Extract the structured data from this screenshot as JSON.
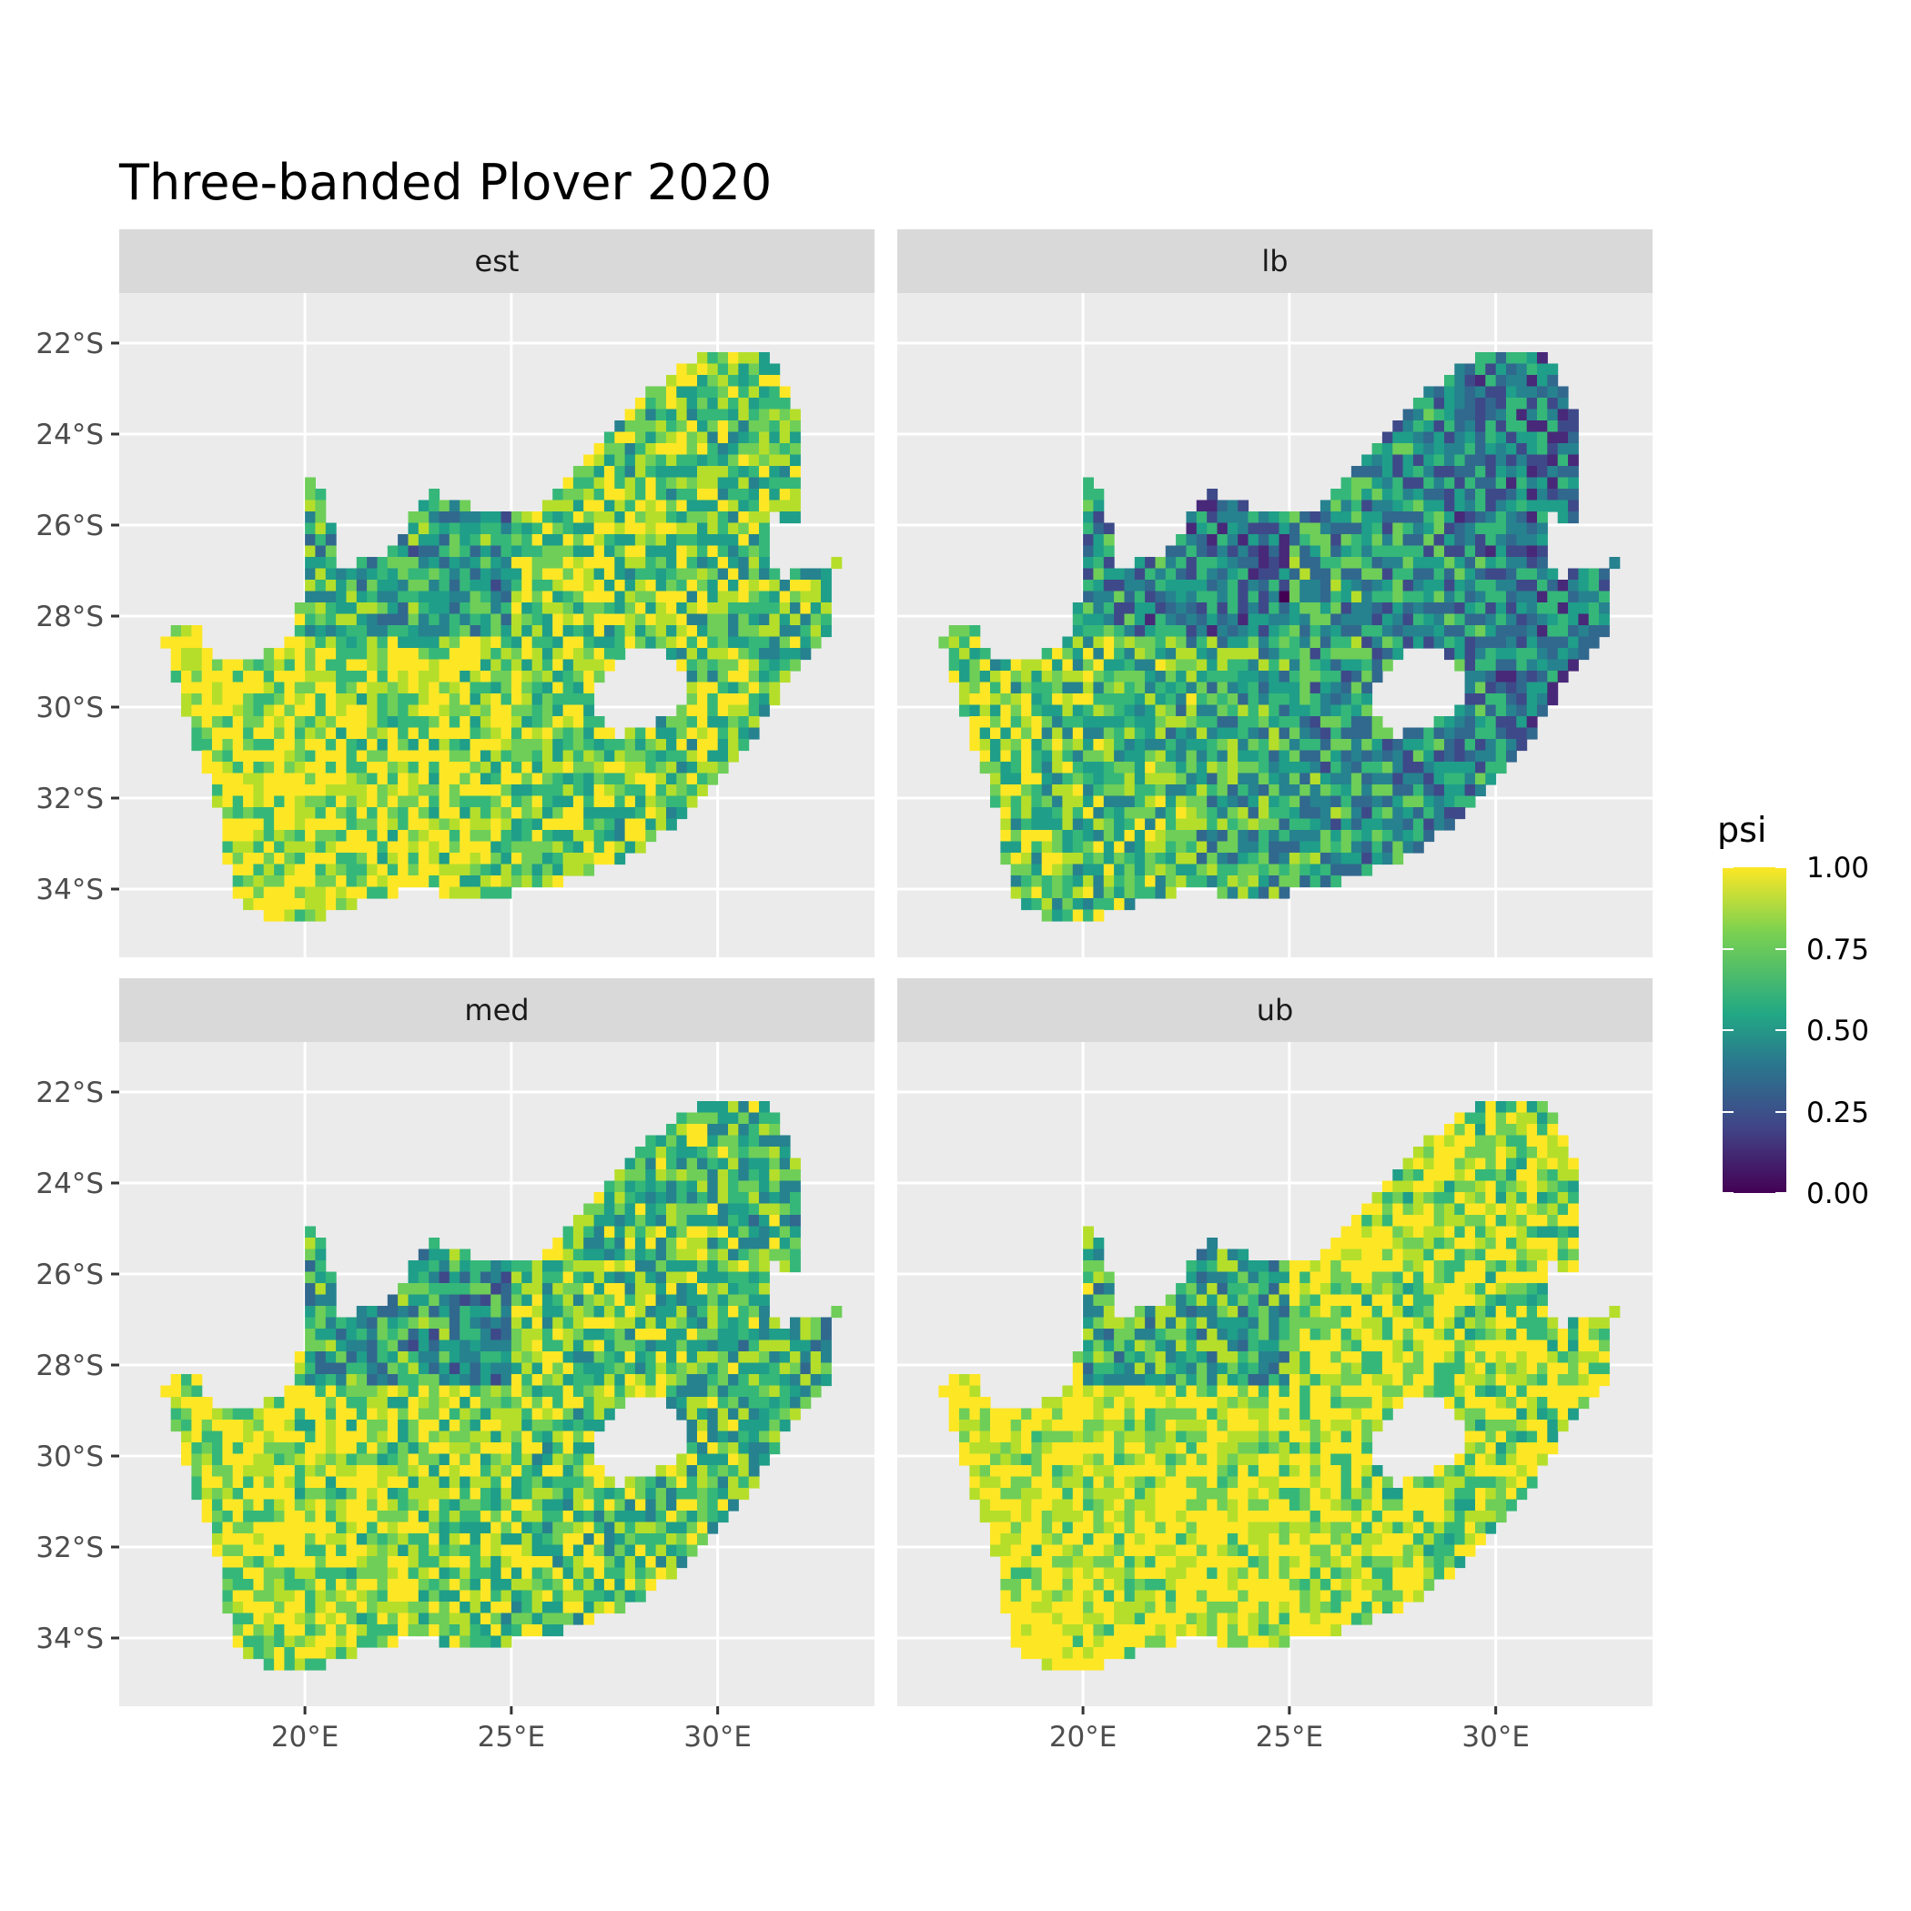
{
  "chart_data": {
    "type": "heatmap",
    "title": "Three-banded Plover 2020",
    "facets": [
      {
        "label": "est",
        "low": 0.7,
        "high": 0.93
      },
      {
        "label": "lb",
        "low": 0.4,
        "high": 0.8
      },
      {
        "label": "med",
        "low": 0.65,
        "high": 0.92
      },
      {
        "label": "ub",
        "low": 0.82,
        "high": 0.98
      }
    ],
    "x_ticks": [
      "20°E",
      "25°E",
      "30°E"
    ],
    "x_tick_values": [
      20,
      25,
      30
    ],
    "y_ticks": [
      "22°S",
      "24°S",
      "26°S",
      "28°S",
      "30°S",
      "32°S",
      "34°S"
    ],
    "y_tick_values": [
      -22,
      -24,
      -26,
      -28,
      -30,
      -32,
      -34
    ],
    "xlim": [
      15.5,
      33.8
    ],
    "ylim": [
      -35.5,
      -20.9
    ],
    "legend": {
      "title": "psi",
      "labels": [
        "1.00",
        "0.75",
        "0.50",
        "0.25",
        "0.00"
      ],
      "values": [
        1.0,
        0.75,
        0.5,
        0.25,
        0.0
      ],
      "colors": [
        "#fde725",
        "#7ad151",
        "#22a884",
        "#2a788e",
        "#414487",
        "#440154"
      ],
      "position": "right"
    },
    "outline": [
      [
        16.6,
        -28.5
      ],
      [
        17.3,
        -28.0
      ],
      [
        17.6,
        -28.8
      ],
      [
        18.4,
        -28.9
      ],
      [
        19.3,
        -28.8
      ],
      [
        19.7,
        -28.5
      ],
      [
        20.0,
        -27.0
      ],
      [
        20.0,
        -24.8
      ],
      [
        20.6,
        -25.5
      ],
      [
        20.7,
        -26.9
      ],
      [
        22.0,
        -26.7
      ],
      [
        22.7,
        -25.7
      ],
      [
        23.1,
        -25.3
      ],
      [
        24.0,
        -25.6
      ],
      [
        25.0,
        -25.7
      ],
      [
        25.7,
        -25.7
      ],
      [
        26.7,
        -24.6
      ],
      [
        27.4,
        -24.0
      ],
      [
        27.9,
        -23.3
      ],
      [
        28.7,
        -22.9
      ],
      [
        29.2,
        -22.4
      ],
      [
        29.8,
        -22.2
      ],
      [
        31.3,
        -22.3
      ],
      [
        31.6,
        -23.0
      ],
      [
        32.0,
        -23.8
      ],
      [
        32.0,
        -26.0
      ],
      [
        31.3,
        -25.8
      ],
      [
        31.2,
        -26.5
      ],
      [
        31.5,
        -27.1
      ],
      [
        32.0,
        -27.0
      ],
      [
        32.6,
        -27.0
      ],
      [
        32.9,
        -26.8
      ],
      [
        32.8,
        -27.8
      ],
      [
        32.6,
        -28.5
      ],
      [
        32.0,
        -29.1
      ],
      [
        31.4,
        -29.8
      ],
      [
        30.6,
        -31.0
      ],
      [
        30.0,
        -31.6
      ],
      [
        29.2,
        -32.4
      ],
      [
        28.0,
        -33.2
      ],
      [
        27.0,
        -33.6
      ],
      [
        26.2,
        -33.8
      ],
      [
        25.8,
        -34.0
      ],
      [
        24.8,
        -34.1
      ],
      [
        24.0,
        -34.2
      ],
      [
        22.6,
        -34.0
      ],
      [
        22.0,
        -34.1
      ],
      [
        21.0,
        -34.4
      ],
      [
        20.0,
        -34.8
      ],
      [
        19.3,
        -34.7
      ],
      [
        18.8,
        -34.4
      ],
      [
        18.4,
        -34.3
      ],
      [
        18.3,
        -33.8
      ],
      [
        17.9,
        -33.0
      ],
      [
        18.0,
        -32.5
      ],
      [
        17.6,
        -31.5
      ],
      [
        17.3,
        -30.6
      ],
      [
        16.9,
        -29.6
      ]
    ],
    "lesotho": [
      [
        27.0,
        -29.6
      ],
      [
        27.5,
        -29.0
      ],
      [
        28.3,
        -28.6
      ],
      [
        29.0,
        -28.9
      ],
      [
        29.4,
        -29.5
      ],
      [
        29.1,
        -30.1
      ],
      [
        28.4,
        -30.4
      ],
      [
        27.6,
        -30.6
      ],
      [
        27.1,
        -30.2
      ]
    ]
  }
}
